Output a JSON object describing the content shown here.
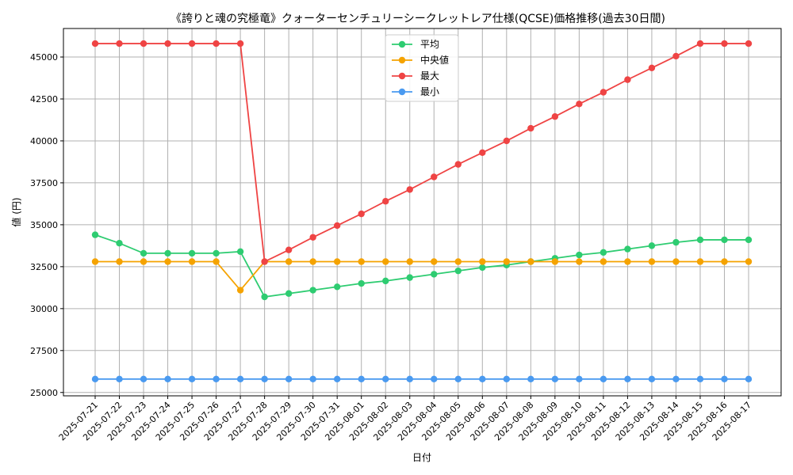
{
  "chart_data": {
    "type": "line",
    "title": "《誇りと魂の究極竜》クォーターセンチュリーシークレットレア仕様(QCSE)価格推移(過去30日間)",
    "xlabel": "日付",
    "ylabel": "値 (円)",
    "ylim": [
      24800,
      46700
    ],
    "yticks": [
      25000,
      27500,
      30000,
      32500,
      35000,
      37500,
      40000,
      42500,
      45000
    ],
    "grid": true,
    "legend_position": "top-center",
    "categories": [
      "2025-07-21",
      "2025-07-22",
      "2025-07-23",
      "2025-07-24",
      "2025-07-25",
      "2025-07-26",
      "2025-07-27",
      "2025-07-28",
      "2025-07-29",
      "2025-07-30",
      "2025-07-31",
      "2025-08-01",
      "2025-08-02",
      "2025-08-03",
      "2025-08-04",
      "2025-08-05",
      "2025-08-06",
      "2025-08-07",
      "2025-08-08",
      "2025-08-09",
      "2025-08-10",
      "2025-08-11",
      "2025-08-12",
      "2025-08-13",
      "2025-08-14",
      "2025-08-15",
      "2025-08-16",
      "2025-08-17"
    ],
    "series": [
      {
        "name": "平均",
        "color": "#2ecc71",
        "values": [
          34400,
          33900,
          33300,
          33300,
          33300,
          33300,
          33400,
          30700,
          30900,
          31100,
          31300,
          31500,
          31650,
          31850,
          32050,
          32250,
          32450,
          32600,
          32800,
          33000,
          33200,
          33350,
          33550,
          33750,
          33950,
          34100,
          34100,
          34100
        ]
      },
      {
        "name": "中央値",
        "color": "#f5a300",
        "values": [
          32800,
          32800,
          32800,
          32800,
          32800,
          32800,
          31100,
          32800,
          32800,
          32800,
          32800,
          32800,
          32800,
          32800,
          32800,
          32800,
          32800,
          32800,
          32800,
          32800,
          32800,
          32800,
          32800,
          32800,
          32800,
          32800,
          32800,
          32800
        ]
      },
      {
        "name": "最大",
        "color": "#ef4444",
        "values": [
          45800,
          45800,
          45800,
          45800,
          45800,
          45800,
          45800,
          32800,
          33500,
          34250,
          34950,
          35650,
          36400,
          37100,
          37850,
          38600,
          39300,
          40000,
          40750,
          41450,
          42200,
          42900,
          43650,
          44350,
          45050,
          45800,
          45800,
          45800
        ]
      },
      {
        "name": "最小",
        "color": "#4a9af0",
        "values": [
          25800,
          25800,
          25800,
          25800,
          25800,
          25800,
          25800,
          25800,
          25800,
          25800,
          25800,
          25800,
          25800,
          25800,
          25800,
          25800,
          25800,
          25800,
          25800,
          25800,
          25800,
          25800,
          25800,
          25800,
          25800,
          25800,
          25800,
          25800
        ]
      }
    ]
  }
}
